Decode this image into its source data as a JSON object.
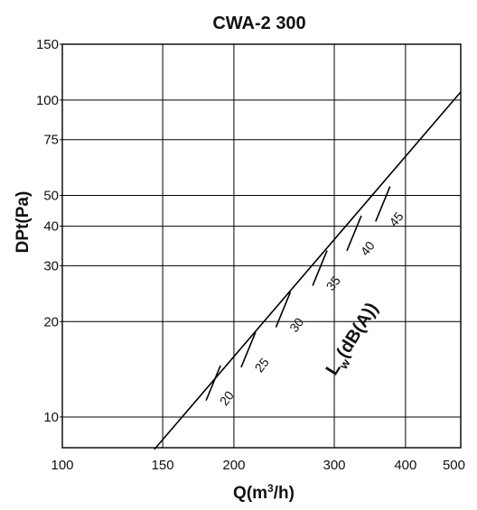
{
  "chart_data": {
    "type": "line",
    "title": "CWA-2 300",
    "xlabel": "Q(m³/h)",
    "ylabel": "DPt(Pa)",
    "xscale": "log",
    "yscale": "log",
    "xlim": [
      100,
      500
    ],
    "ylim": [
      8,
      150
    ],
    "x_ticks": [
      "100",
      "150",
      "200",
      "300",
      "400",
      "500"
    ],
    "x_tick_values": [
      100,
      150,
      200,
      300,
      400,
      500
    ],
    "y_ticks": [
      "10",
      "20",
      "30",
      "40",
      "50",
      "75",
      "100",
      "150"
    ],
    "y_tick_values": [
      10,
      20,
      30,
      40,
      50,
      75,
      100,
      150
    ],
    "grid": true,
    "series": [
      {
        "x": [
          145,
          500
        ],
        "y": [
          7.9,
          106
        ]
      }
    ],
    "sound_level_label": "Lw(dB(A))",
    "sound_level_markers": [
      {
        "label": "20",
        "x": 184,
        "y": 12.8
      },
      {
        "label": "25",
        "x": 212,
        "y": 16.3
      },
      {
        "label": "30",
        "x": 244,
        "y": 21.8
      },
      {
        "label": "35",
        "x": 283,
        "y": 29.5
      },
      {
        "label": "40",
        "x": 325,
        "y": 38.0
      },
      {
        "label": "45",
        "x": 365,
        "y": 47.0
      }
    ]
  }
}
